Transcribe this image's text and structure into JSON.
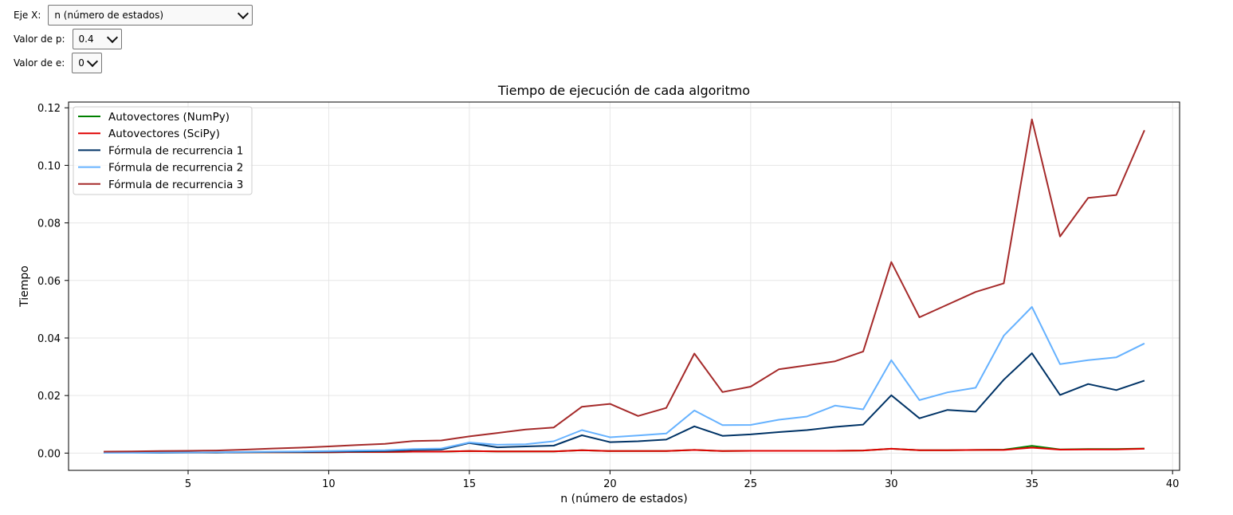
{
  "controls": {
    "x_axis": {
      "label": "Eje X:",
      "value": "n (número de estados)"
    },
    "p": {
      "label": "Valor de p:",
      "value": "0.4"
    },
    "e": {
      "label": "Valor de e:",
      "value": "0"
    }
  },
  "chart_data": {
    "type": "line",
    "title": "Tiempo de ejecución de cada algoritmo",
    "xlabel": "n (número de estados)",
    "ylabel": "Tiempo",
    "xlim": [
      0.75,
      40.25
    ],
    "ylim": [
      -0.006,
      0.122
    ],
    "xticks": [
      5,
      10,
      15,
      20,
      25,
      30,
      35,
      40
    ],
    "xtick_labels": [
      "5",
      "10",
      "15",
      "20",
      "25",
      "30",
      "35",
      "40"
    ],
    "yticks": [
      0.0,
      0.02,
      0.04,
      0.06,
      0.08,
      0.1,
      0.12
    ],
    "ytick_labels": [
      "0.00",
      "0.02",
      "0.04",
      "0.06",
      "0.08",
      "0.10",
      "0.12"
    ],
    "grid": true,
    "legend_position": "top-left",
    "x": [
      2,
      3,
      4,
      5,
      6,
      7,
      8,
      9,
      10,
      11,
      12,
      13,
      14,
      15,
      16,
      17,
      18,
      19,
      20,
      21,
      22,
      23,
      24,
      25,
      26,
      27,
      28,
      29,
      30,
      31,
      32,
      33,
      34,
      35,
      36,
      37,
      38,
      39
    ],
    "series": [
      {
        "name": "Autovectores (NumPy)",
        "color": "#008000",
        "values": [
          0.0002,
          0.0002,
          0.0002,
          0.0002,
          0.0002,
          0.0003,
          0.0003,
          0.0003,
          0.0003,
          0.0004,
          0.0004,
          0.0005,
          0.0005,
          0.0007,
          0.0006,
          0.0006,
          0.0006,
          0.001,
          0.0007,
          0.0007,
          0.0007,
          0.0011,
          0.0007,
          0.0008,
          0.0008,
          0.0008,
          0.0008,
          0.0009,
          0.0015,
          0.001,
          0.001,
          0.0011,
          0.0012,
          0.0025,
          0.0013,
          0.0014,
          0.0014,
          0.0016
        ]
      },
      {
        "name": "Autovectores (SciPy)",
        "color": "#e00000",
        "values": [
          0.0002,
          0.0002,
          0.0002,
          0.0002,
          0.0002,
          0.0003,
          0.0003,
          0.0003,
          0.0003,
          0.0004,
          0.0004,
          0.0005,
          0.0005,
          0.0007,
          0.0006,
          0.0006,
          0.0006,
          0.001,
          0.0007,
          0.0007,
          0.0007,
          0.0011,
          0.0007,
          0.0008,
          0.0008,
          0.0008,
          0.0008,
          0.0009,
          0.0015,
          0.001,
          0.001,
          0.0011,
          0.0011,
          0.0019,
          0.0012,
          0.0013,
          0.0013,
          0.0015
        ]
      },
      {
        "name": "Fórmula de recurrencia 1",
        "color": "#003366",
        "values": [
          0.0001,
          0.0001,
          0.0001,
          0.0002,
          0.0002,
          0.0003,
          0.0004,
          0.0004,
          0.0005,
          0.0006,
          0.0007,
          0.0011,
          0.0012,
          0.0035,
          0.002,
          0.0023,
          0.0026,
          0.0062,
          0.0038,
          0.0041,
          0.0047,
          0.0093,
          0.006,
          0.0065,
          0.0073,
          0.008,
          0.0091,
          0.0099,
          0.0201,
          0.0121,
          0.015,
          0.0144,
          0.0255,
          0.0347,
          0.0202,
          0.024,
          0.0219,
          0.0252
        ]
      },
      {
        "name": "Fórmula de recurrencia 2",
        "color": "#66b2ff",
        "values": [
          0.0001,
          0.0001,
          0.0002,
          0.0002,
          0.0003,
          0.0004,
          0.0005,
          0.0006,
          0.0007,
          0.0009,
          0.001,
          0.0014,
          0.0016,
          0.0037,
          0.0029,
          0.0031,
          0.0041,
          0.008,
          0.0055,
          0.0061,
          0.0068,
          0.0148,
          0.0097,
          0.0098,
          0.0116,
          0.0127,
          0.0165,
          0.0152,
          0.0323,
          0.0184,
          0.0211,
          0.0227,
          0.0408,
          0.0508,
          0.0309,
          0.0323,
          0.0333,
          0.0381
        ]
      },
      {
        "name": "Fórmula de recurrencia 3",
        "color": "#a52a2a",
        "values": [
          0.0005,
          0.0006,
          0.0007,
          0.0008,
          0.0009,
          0.0012,
          0.0016,
          0.0019,
          0.0023,
          0.0028,
          0.0032,
          0.0042,
          0.0044,
          0.0058,
          0.007,
          0.0082,
          0.0089,
          0.0161,
          0.0171,
          0.0129,
          0.0157,
          0.0346,
          0.0212,
          0.0231,
          0.0291,
          0.0305,
          0.0319,
          0.0353,
          0.0664,
          0.0472,
          0.0516,
          0.056,
          0.059,
          0.116,
          0.0753,
          0.0887,
          0.0897,
          0.1122
        ]
      }
    ]
  }
}
